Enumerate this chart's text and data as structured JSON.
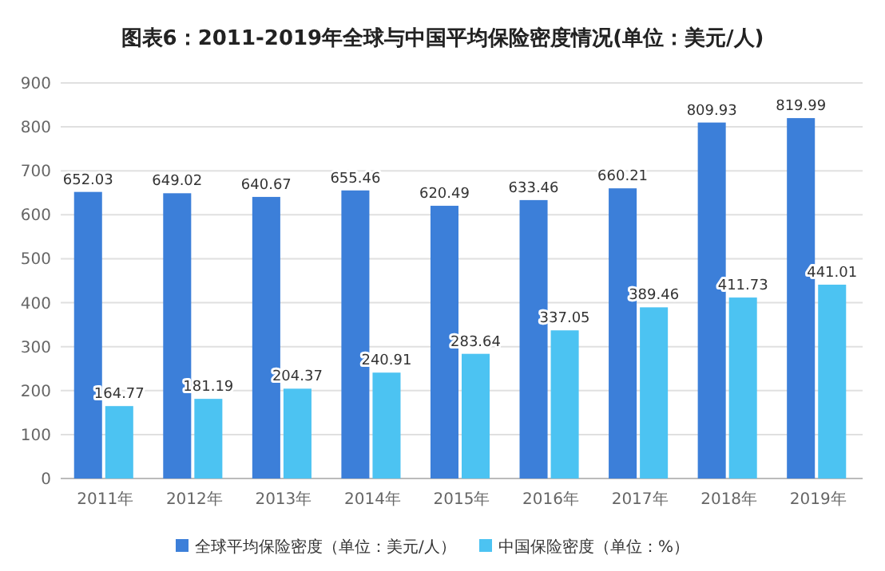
{
  "chart_data": {
    "type": "bar",
    "title": "图表6：2011-2019年全球与中国平均保险密度情况(单位：美元/人)",
    "categories": [
      "2011年",
      "2012年",
      "2013年",
      "2014年",
      "2015年",
      "2016年",
      "2017年",
      "2018年",
      "2019年"
    ],
    "series": [
      {
        "name": "全球平均保险密度（单位：美元/人）",
        "color": "#3c7fd9",
        "values": [
          652.03,
          649.02,
          640.67,
          655.46,
          620.49,
          633.46,
          660.21,
          809.93,
          819.99
        ]
      },
      {
        "name": "中国保险密度（单位：%）",
        "color": "#4cc3f2",
        "values": [
          164.77,
          181.19,
          204.37,
          240.91,
          283.64,
          337.05,
          389.46,
          411.73,
          441.01
        ]
      }
    ],
    "ylim": [
      0,
      900
    ],
    "yticks": [
      0,
      100,
      200,
      300,
      400,
      500,
      600,
      700,
      800,
      900
    ],
    "grid": "y",
    "legend": "bottom",
    "data_labels": true
  }
}
